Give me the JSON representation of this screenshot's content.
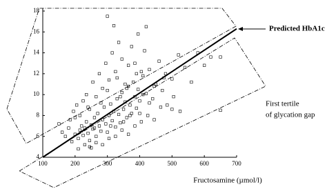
{
  "chart_data": {
    "type": "scatter",
    "xlabel": "Fructosamine (µmol/l)",
    "annotations": [
      "Predicted HbA1c",
      "First tertile",
      "of glycation gap"
    ],
    "xlim": [
      100,
      700
    ],
    "ylim": [
      4,
      18
    ],
    "xticks": [
      100,
      200,
      300,
      400,
      500,
      600,
      700
    ],
    "yticks": [
      4,
      6,
      8,
      10,
      12,
      14,
      16,
      18
    ],
    "color": "#000000",
    "x": [
      200,
      210,
      215,
      220,
      225,
      230,
      235,
      240,
      245,
      250,
      255,
      260,
      265,
      270,
      275,
      280,
      285,
      290,
      295,
      300,
      305,
      310,
      315,
      320,
      325,
      330,
      335,
      340,
      345,
      350,
      355,
      360,
      365,
      370,
      375,
      380,
      385,
      390,
      395,
      400,
      410,
      420,
      430,
      440,
      450,
      460,
      470,
      480,
      500,
      520,
      540,
      560,
      580,
      600,
      620,
      650,
      650,
      180,
      190,
      170,
      160,
      150,
      185,
      195,
      205,
      215,
      225,
      235,
      245,
      255,
      265,
      275,
      285,
      295,
      305,
      315,
      325,
      335,
      345,
      355,
      365,
      375,
      385,
      395,
      405,
      415,
      245,
      265,
      285,
      305,
      325,
      345,
      365,
      385,
      405,
      425,
      445,
      465,
      485,
      505,
      525,
      210,
      230,
      250,
      300,
      320,
      420,
      445,
      475,
      500,
      430,
      390,
      280,
      300,
      330,
      200,
      240,
      260,
      310,
      350,
      370,
      400,
      340,
      360,
      410
    ],
    "y": [
      6.2,
      5.8,
      6.6,
      7.0,
      6.1,
      6.8,
      7.4,
      6.3,
      5.6,
      7.1,
      6.7,
      7.8,
      6.0,
      8.2,
      7.0,
      6.5,
      7.6,
      8.8,
      7.2,
      6.4,
      8.0,
      9.1,
      7.5,
      8.4,
      6.9,
      9.6,
      8.1,
      7.3,
      10.2,
      8.6,
      9.3,
      7.8,
      10.8,
      9.0,
      8.2,
      11.2,
      9.8,
      8.7,
      10.5,
      9.4,
      11.8,
      10.1,
      12.4,
      9.6,
      11.0,
      13.2,
      10.4,
      12.0,
      11.5,
      13.8,
      12.6,
      11.2,
      14.0,
      12.8,
      13.6,
      8.5,
      13.6,
      6.8,
      5.5,
      6.0,
      6.4,
      7.2,
      7.6,
      8.4,
      9.0,
      8.0,
      9.4,
      10.0,
      8.6,
      11.2,
      9.8,
      12.0,
      10.6,
      13.0,
      11.4,
      14.0,
      12.2,
      15.0,
      13.4,
      11.0,
      12.8,
      14.6,
      13.0,
      15.8,
      12.2,
      14.2,
      5.0,
      5.4,
      5.2,
      5.8,
      6.0,
      6.6,
      6.2,
      7.0,
      7.4,
      8.0,
      7.6,
      8.8,
      9.0,
      9.8,
      8.4,
      4.8,
      5.2,
      4.9,
      17.5,
      16.6,
      16.5,
      10.8,
      11.6,
      8.6,
      9.2,
      12.0,
      9.2,
      10.4,
      11.6,
      7.8,
      8.8,
      6.8,
      7.0,
      7.4,
      8.0,
      8.2,
      9.8,
      10.6,
      10.0
    ],
    "fit": {
      "x": [
        100,
        700
      ],
      "y": [
        4,
        16.3
      ]
    }
  }
}
